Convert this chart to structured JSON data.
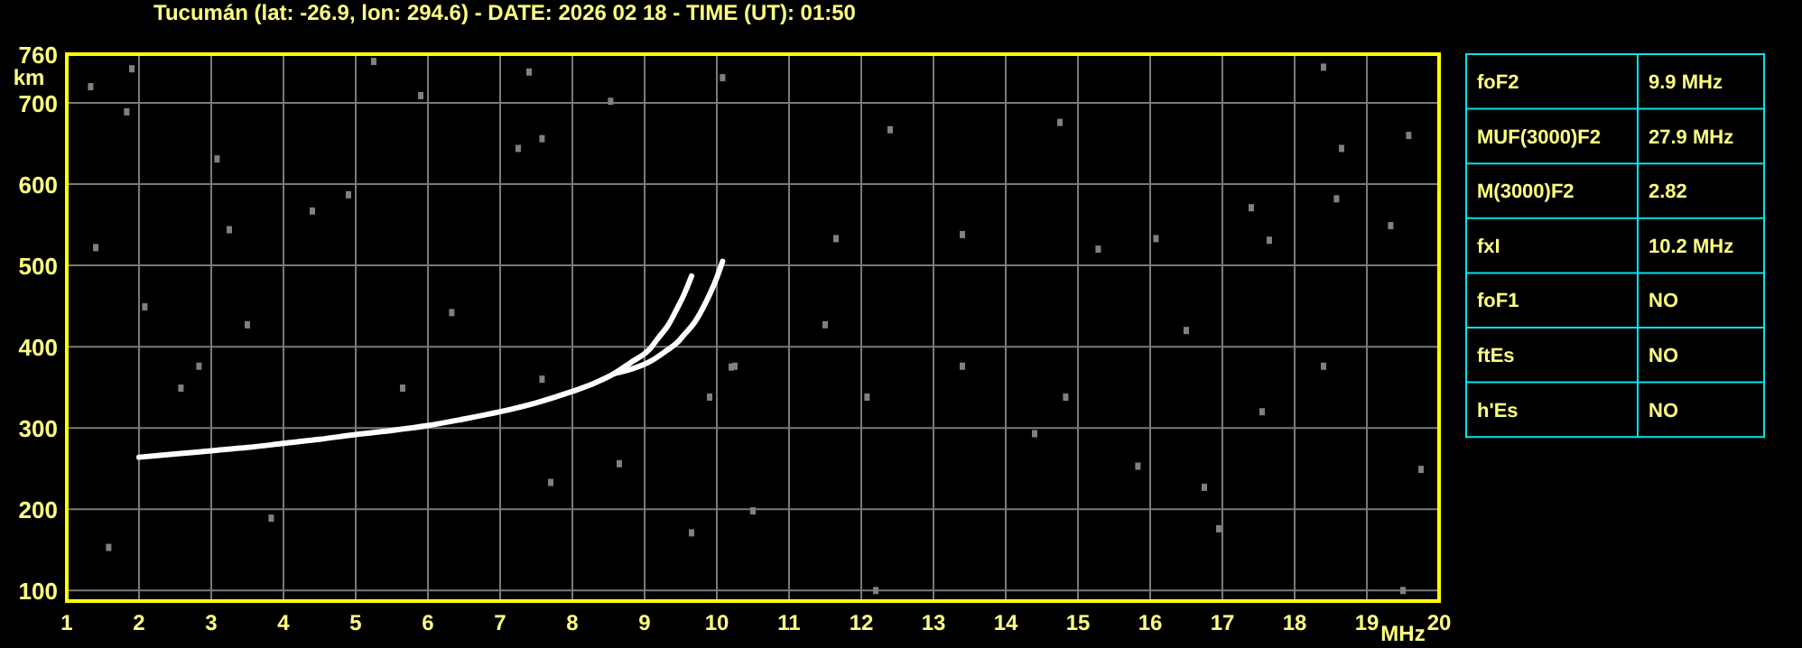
{
  "chart_data": [
    {
      "type": "line",
      "title": "Tucumán (lat: -26.9, lon: 294.6) - DATE: 2026 02 18 - TIME (UT): 01:50",
      "xlabel": "MHz",
      "ylabel": "km",
      "xlim": [
        1,
        20
      ],
      "xticks": [
        1,
        2,
        3,
        4,
        5,
        6,
        7,
        8,
        9,
        10,
        11,
        12,
        13,
        14,
        15,
        16,
        17,
        18,
        19,
        20
      ],
      "ylim": [
        87,
        760
      ],
      "yticks": [
        100,
        200,
        300,
        400,
        500,
        600,
        700,
        760
      ],
      "grid": true,
      "line_style": "solid",
      "series": [
        {
          "type": "line",
          "color": "#ffffff",
          "x": [
            2.0,
            2.5,
            3.0,
            3.5,
            4.0,
            4.5,
            5.0,
            5.5,
            6.0,
            6.5,
            7.0,
            7.5,
            8.0,
            8.3,
            8.58,
            8.8,
            9.08,
            9.2,
            9.33,
            9.45,
            9.55,
            9.65
          ],
          "values": [
            264,
            268,
            272,
            276,
            281,
            286,
            292,
            297,
            303,
            311,
            320,
            331,
            345,
            355,
            367,
            380,
            398,
            412,
            427,
            447,
            465,
            487
          ]
        },
        {
          "type": "line",
          "color": "#ffffff",
          "x": [
            8.58,
            8.8,
            9.08,
            9.3,
            9.45,
            9.55,
            9.7,
            9.85,
            10.0,
            10.08
          ],
          "values": [
            367,
            372,
            382,
            395,
            405,
            415,
            431,
            455,
            485,
            505
          ]
        },
        {
          "type": "scatter",
          "color": "#808080",
          "marker": "square",
          "x": [
            1.33,
            1.9,
            1.83,
            3.08,
            3.25,
            4.4,
            4.9,
            5.25,
            5.9,
            7.25,
            7.4,
            7.58,
            8.53,
            10.08,
            1.58,
            2.58,
            3.83,
            5.65,
            7.7,
            8.65,
            9.65,
            10.2,
            11.5,
            10.5,
            12.08,
            12.2,
            16.5,
            14.4,
            17.55,
            16.75,
            16.95,
            15.83,
            19.5,
            13.4,
            14.83,
            18.4,
            19.75,
            11.65,
            16.08,
            17.65,
            15.28,
            19.58,
            18.65,
            14.75,
            17.4,
            18.4,
            12.4,
            19.33,
            13.4,
            18.58,
            1.4,
            2.08,
            2.83,
            3.5,
            6.33,
            7.58,
            10.25,
            9.9
          ],
          "values": [
            720,
            742,
            689,
            631,
            544,
            567,
            587,
            751,
            709,
            644,
            738,
            656,
            702,
            731,
            153,
            349,
            189,
            349,
            233,
            256,
            171,
            375,
            427,
            198,
            338,
            100,
            420,
            293,
            320,
            227,
            176,
            253,
            100,
            376,
            338,
            376,
            249,
            533,
            533,
            531,
            520,
            660,
            644,
            676,
            571,
            744,
            667,
            549,
            538,
            582,
            522,
            449,
            376,
            427,
            442,
            360,
            376,
            338
          ]
        }
      ]
    },
    {
      "type": "other",
      "categories": [
        "foF2",
        "MUF(3000)F2",
        "M(3000)F2",
        "fxI",
        "foF1",
        "ftEs",
        "h'Es"
      ],
      "value_labels": [
        "9.9 MHz",
        "27.9 MHz",
        "2.82",
        "10.2 MHz",
        "NO",
        "NO",
        "NO"
      ]
    }
  ]
}
